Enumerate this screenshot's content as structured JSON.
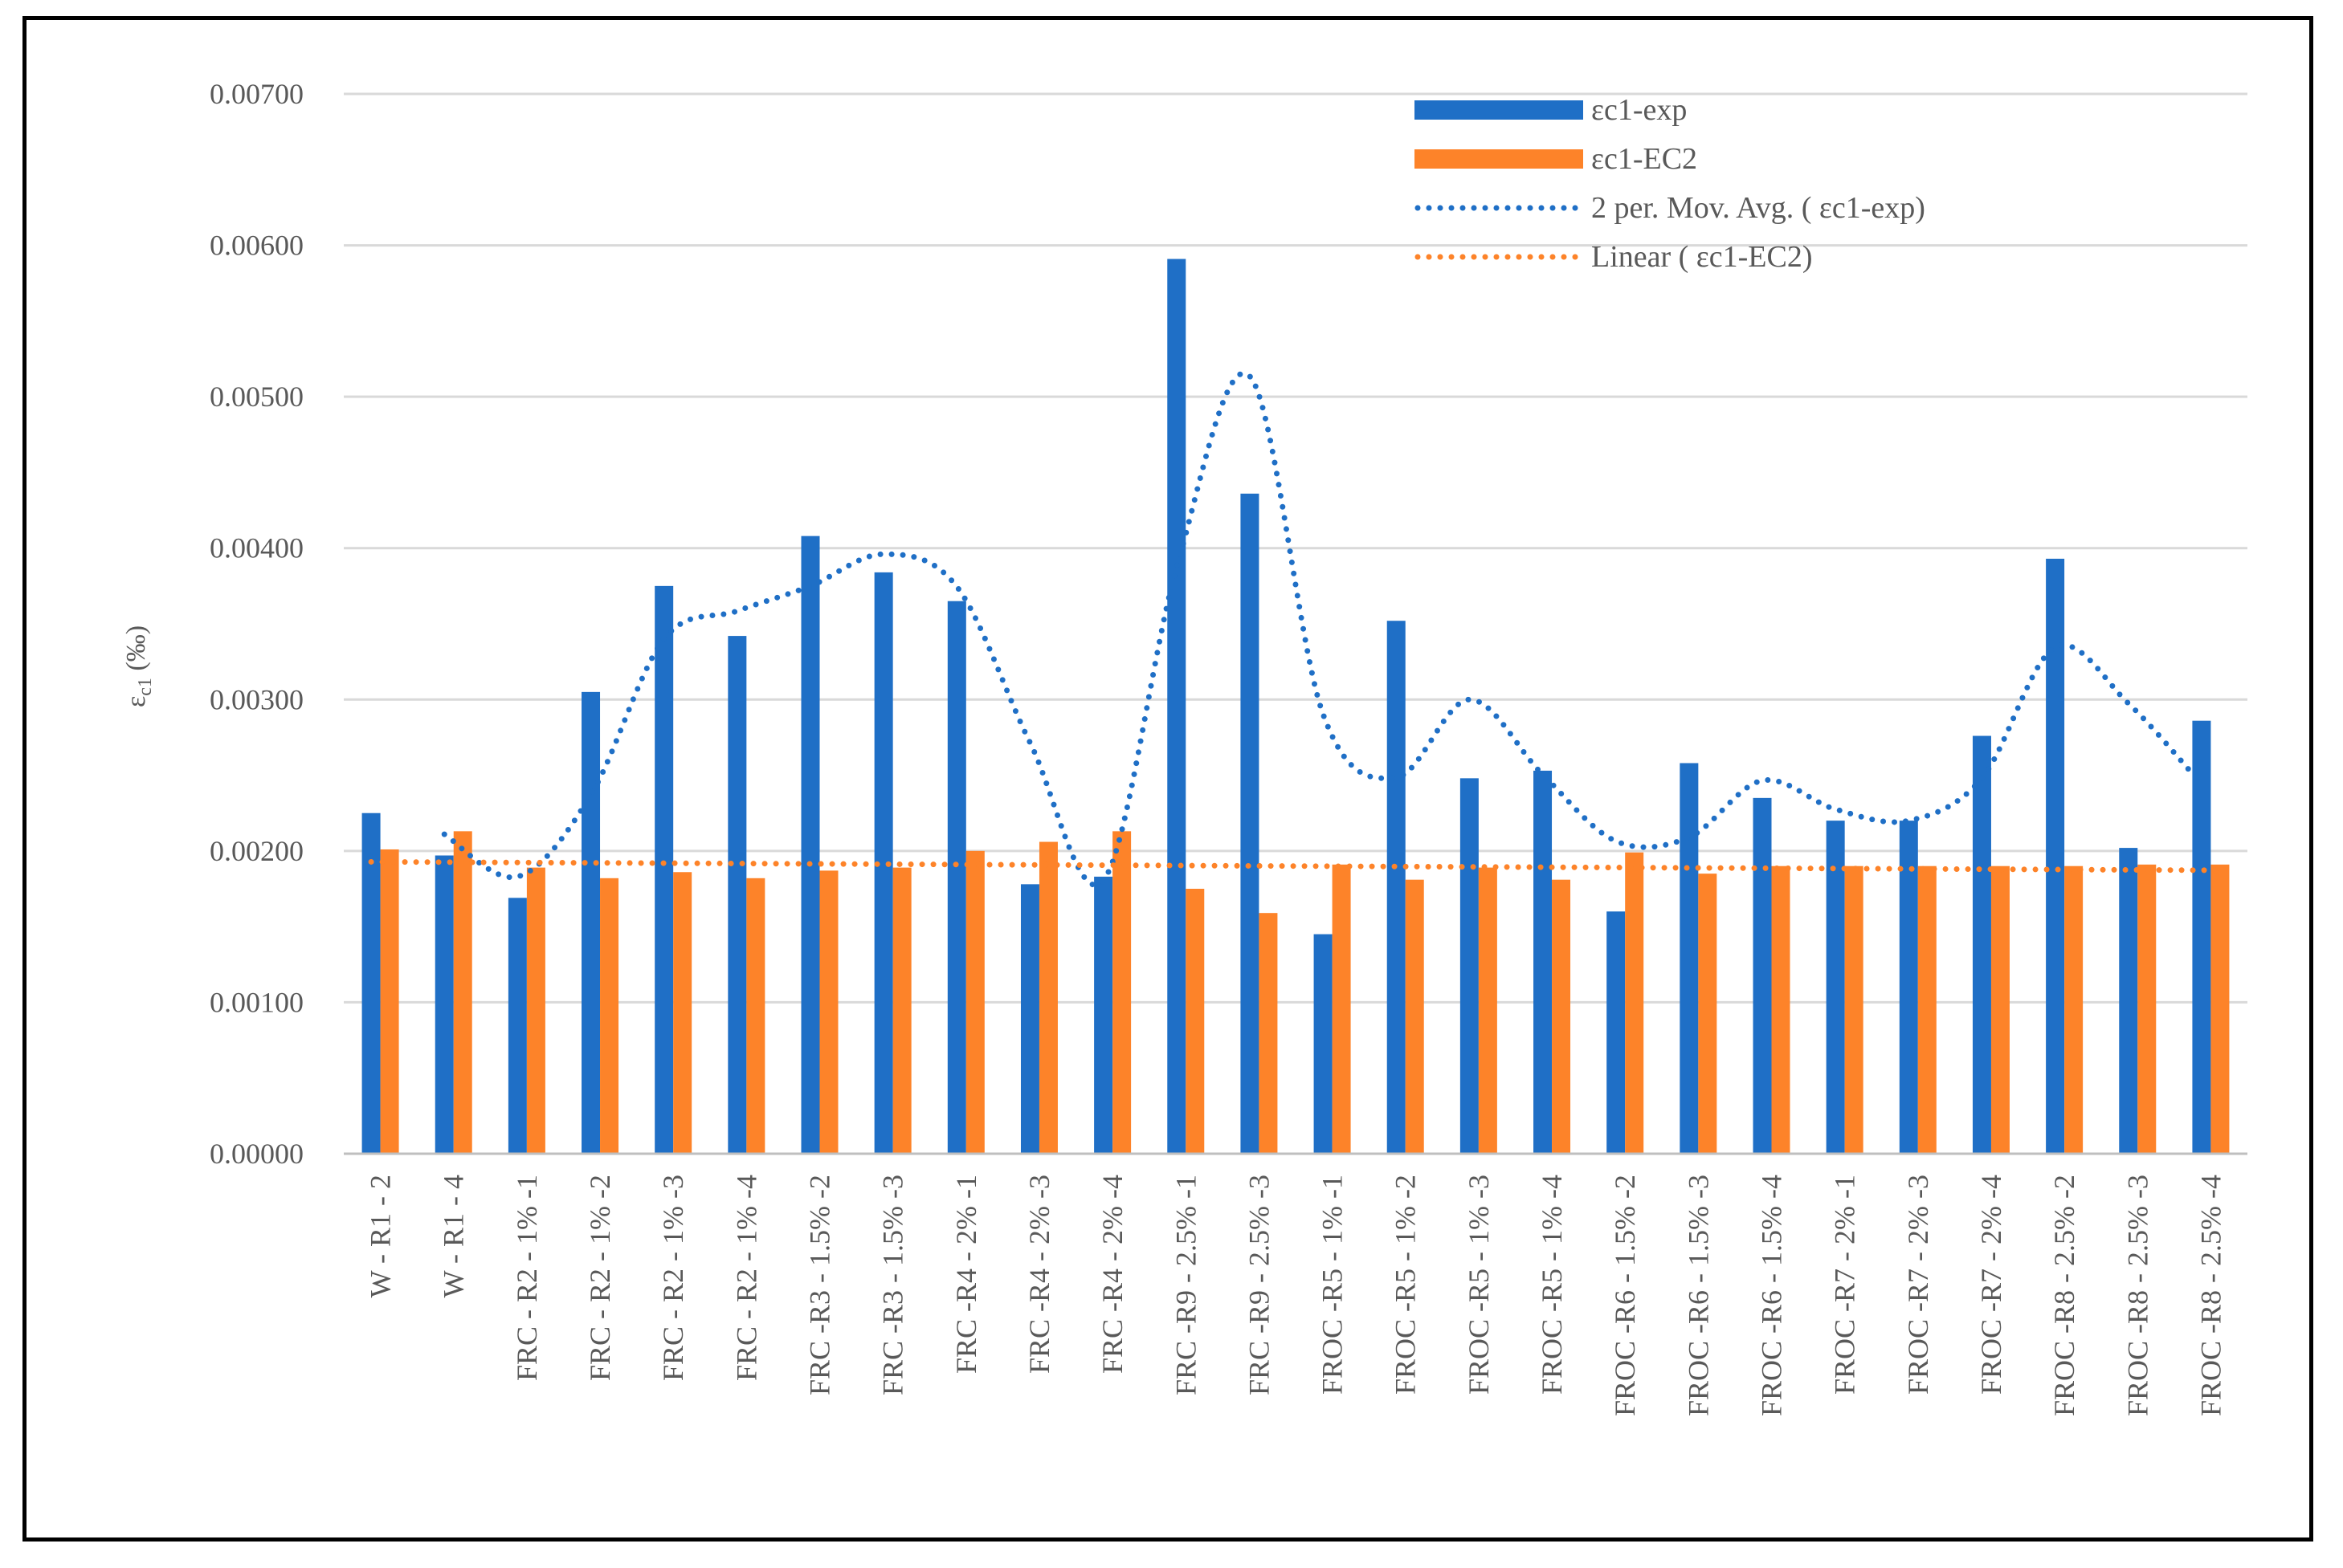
{
  "chart_data": {
    "type": "bar",
    "title": "",
    "xlabel": "",
    "ylabel": "εc1 (‰)",
    "ylabel_main": "ε",
    "ylabel_sub": "c1",
    "ylabel_unit": " (‰)",
    "ylim": [
      0,
      0.007
    ],
    "ytick_step": 0.001,
    "ytick_labels": [
      "0.00000",
      "0.00100",
      "0.00200",
      "0.00300",
      "0.00400",
      "0.00500",
      "0.00600",
      "0.00700"
    ],
    "grid": true,
    "legend_position": "top-right",
    "categories": [
      "W - R1 - 2",
      "W - R1 - 4",
      "FRC - R2 - 1% -1",
      "FRC - R2 - 1% -2",
      "FRC - R2 - 1% -3",
      "FRC - R2 - 1% -4",
      "FRC -R3 - 1.5% -2",
      "FRC -R3 - 1.5% -3",
      "FRC -R4 - 2% -1",
      "FRC -R4 - 2% -3",
      "FRC -R4 - 2% -4",
      "FRC -R9 - 2.5% -1",
      "FRC -R9 - 2.5% -3",
      "FROC -R5 - 1% -1",
      "FROC -R5 - 1% -2",
      "FROC -R5 - 1% -3",
      "FROC -R5 - 1% -4",
      "FROC -R6 - 1.5% -2",
      "FROC -R6 - 1.5% -3",
      "FROC -R6 - 1.5% -4",
      "FROC -R7 - 2% -1",
      "FROC -R7 - 2% -3",
      "FROC -R7 - 2% -4",
      "FROC -R8 - 2.5% -2",
      "FROC -R8 - 2.5% -3",
      "FROC -R8 - 2.5% -4"
    ],
    "series": [
      {
        "name": "εc1-exp",
        "color": "#1f6fc6",
        "values": [
          0.00225,
          0.00197,
          0.00169,
          0.00305,
          0.00375,
          0.00342,
          0.00408,
          0.00384,
          0.00365,
          0.00178,
          0.00183,
          0.00591,
          0.00436,
          0.00145,
          0.00352,
          0.00248,
          0.00253,
          0.0016,
          0.00258,
          0.00235,
          0.0022,
          0.0022,
          0.00276,
          0.00393,
          0.00202,
          0.00286
        ]
      },
      {
        "name": "εc1-EC2",
        "color": "#fd8329",
        "values": [
          0.00201,
          0.00213,
          0.00189,
          0.00182,
          0.00186,
          0.00182,
          0.00187,
          0.00189,
          0.002,
          0.00206,
          0.00213,
          0.00175,
          0.00159,
          0.00191,
          0.00181,
          0.00189,
          0.00181,
          0.00199,
          0.00185,
          0.0019,
          0.0019,
          0.0019,
          0.0019,
          0.0019,
          0.00191,
          0.00191
        ]
      }
    ],
    "trendlines": [
      {
        "name": "2 per. Mov. Avg. ( εc1-exp)",
        "type": "moving_average",
        "period": 2,
        "series": 0,
        "color": "#1f6fc6"
      },
      {
        "name": "Linear ( εc1-EC2)",
        "type": "linear",
        "series": 1,
        "color": "#fd8329"
      }
    ]
  }
}
